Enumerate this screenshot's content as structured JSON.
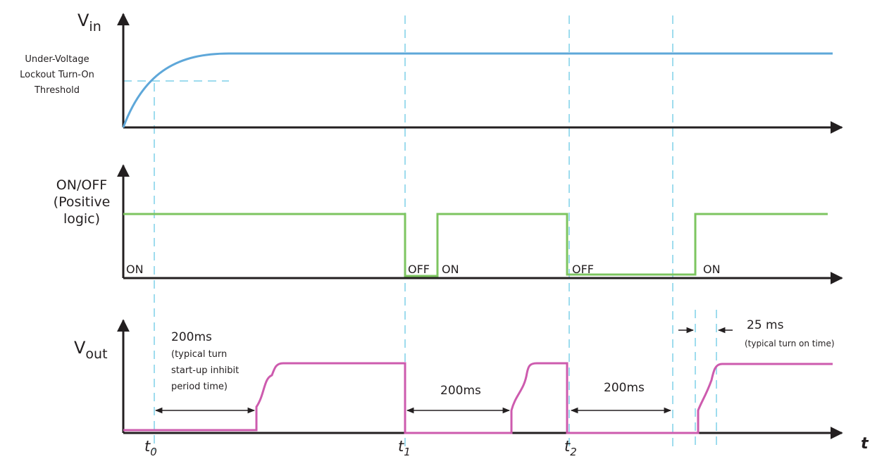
{
  "colors": {
    "vin": "#5ea7d9",
    "onoff": "#7dc560",
    "vout": "#cd5bae",
    "guide": "#7fd0e8",
    "axis": "#231f20"
  },
  "vin_panel": {
    "label_main": "V",
    "label_sub": "in",
    "threshold_line1": "Under-Voltage",
    "threshold_line2": "Lockout Turn-On",
    "threshold_line3": "Threshold"
  },
  "onoff_panel": {
    "label_line1": "ON/OFF",
    "label_line2": "(Positive",
    "label_line3": "logic)",
    "state_on_1": "ON",
    "state_off_1": "OFF",
    "state_on_2": "ON",
    "state_off_2": "OFF",
    "state_on_3": "ON"
  },
  "vout_panel": {
    "label_main": "V",
    "label_sub": "out",
    "inhibit_value": "200ms",
    "inhibit_note1": "(typical turn",
    "inhibit_note2": "start-up inhibit",
    "inhibit_note3": "period time)",
    "delay_2": "200ms",
    "delay_3": "200ms",
    "turn_on_value": "25 ms",
    "turn_on_note": "(typical turn on time)"
  },
  "time_axis": {
    "axis_label": "t",
    "markers": [
      {
        "main": "t",
        "sub": "0"
      },
      {
        "main": "t",
        "sub": "1"
      },
      {
        "main": "t",
        "sub": "2"
      }
    ]
  }
}
